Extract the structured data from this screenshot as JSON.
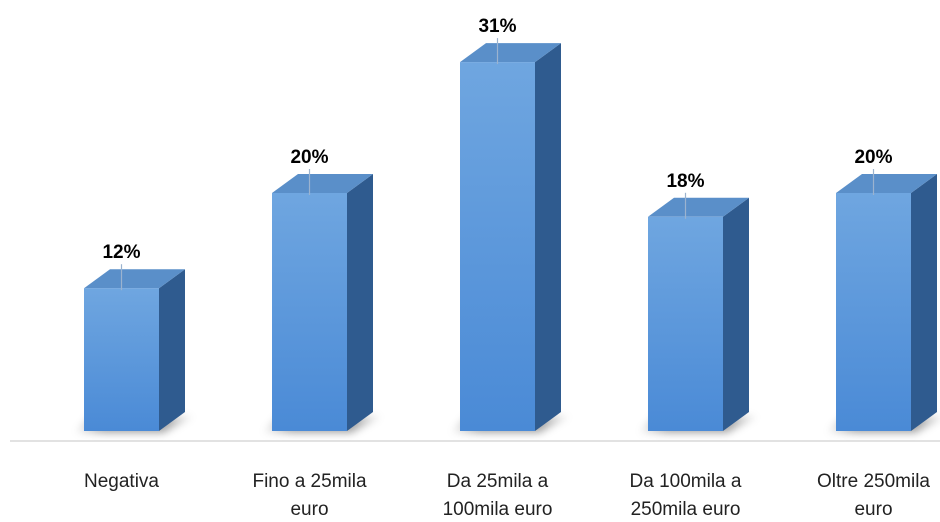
{
  "chart_data": {
    "type": "bar",
    "style": "3d-column",
    "categories": [
      [
        "Negativa"
      ],
      [
        "Fino a 25mila",
        "euro"
      ],
      [
        "Da 25mila a",
        "100mila euro"
      ],
      [
        "Da 100mila a",
        "250mila euro"
      ],
      [
        "Oltre 250mila",
        "euro"
      ]
    ],
    "values": [
      12,
      20,
      31,
      18,
      20
    ],
    "value_labels": [
      "12%",
      "20%",
      "31%",
      "18%",
      "20%"
    ],
    "unit": "%",
    "ylim": [
      0,
      35
    ],
    "grid": false,
    "legend": "none",
    "colors": {
      "front_top": "#6fa6e0",
      "front_bottom": "#4a8ad6",
      "side": "#2f5b8f",
      "top": "#5a8fc9",
      "baseline": "#d9d9d9"
    }
  }
}
